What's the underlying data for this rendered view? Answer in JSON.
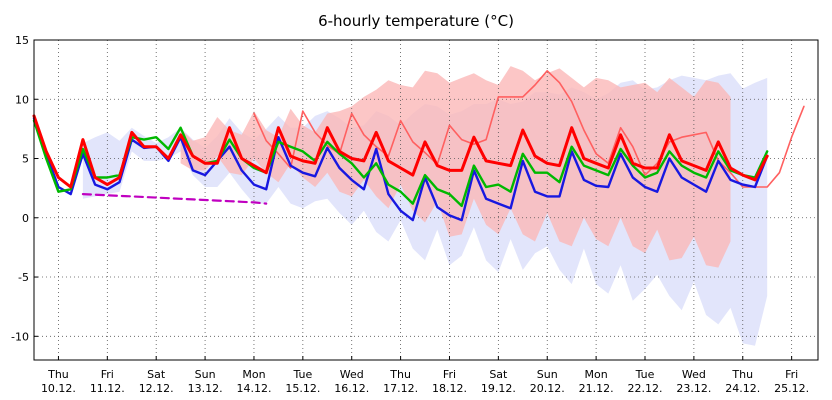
{
  "chart_data": {
    "type": "line",
    "title": "6-hourly temperature (°C)",
    "ylim": [
      -12,
      15
    ],
    "yticks": [
      15,
      10,
      5,
      0,
      -5,
      -10
    ],
    "xlim": [
      0,
      62
    ],
    "grid": true,
    "x_labels": [
      {
        "idx": 2,
        "day": "Thu",
        "date": "10.12."
      },
      {
        "idx": 6,
        "day": "Fri",
        "date": "11.12."
      },
      {
        "idx": 10,
        "day": "Sat",
        "date": "12.12."
      },
      {
        "idx": 14,
        "day": "Sun",
        "date": "13.12."
      },
      {
        "idx": 18,
        "day": "Mon",
        "date": "14.12."
      },
      {
        "idx": 22,
        "day": "Tue",
        "date": "15.12."
      },
      {
        "idx": 26,
        "day": "Wed",
        "date": "16.12."
      },
      {
        "idx": 30,
        "day": "Thu",
        "date": "17.12."
      },
      {
        "idx": 34,
        "day": "Fri",
        "date": "18.12."
      },
      {
        "idx": 38,
        "day": "Sat",
        "date": "19.12."
      },
      {
        "idx": 42,
        "day": "Sun",
        "date": "20.12."
      },
      {
        "idx": 46,
        "day": "Mon",
        "date": "21.12."
      },
      {
        "idx": 50,
        "day": "Tue",
        "date": "22.12."
      },
      {
        "idx": 54,
        "day": "Wed",
        "date": "23.12."
      },
      {
        "idx": 58,
        "day": "Thu",
        "date": "24.12."
      },
      {
        "idx": 62,
        "day": "Fri",
        "date": "25.12."
      }
    ],
    "bands": [
      {
        "color": "#d8dcfa",
        "opacity": 0.75,
        "start": 4,
        "upper": [
          6.3,
          6.8,
          7.2,
          6.5,
          7.6,
          6.9,
          6.3,
          6.8,
          7.6,
          6.6,
          5.9,
          6.9,
          8.4,
          7.2,
          6.6,
          7.5,
          8.6,
          7.6,
          7.6,
          8.6,
          9.0,
          8.4,
          7.6,
          7.8,
          9.0,
          8.6,
          7.8,
          8.8,
          9.6,
          9.4,
          8.7,
          9.0,
          9.6,
          9.6,
          10.0,
          9.6,
          9.8,
          10.6,
          10.6,
          10.4,
          11.0,
          10.6,
          10.0,
          10.5,
          11.4,
          11.6,
          10.8,
          11.0,
          11.6,
          12.0,
          11.8,
          11.6,
          12.0,
          12.2,
          10.9,
          11.4,
          11.8
        ],
        "lower": [
          1.6,
          1.8,
          2.0,
          2.2,
          5.6,
          4.8,
          4.8,
          5.0,
          5.6,
          3.6,
          2.6,
          2.6,
          3.8,
          2.4,
          1.2,
          1.2,
          2.6,
          1.2,
          0.8,
          1.4,
          1.6,
          0.4,
          -0.6,
          0.6,
          -1.2,
          -2.0,
          -0.2,
          -2.6,
          -3.6,
          -1.0,
          -4.0,
          -3.2,
          -0.8,
          -3.6,
          -4.6,
          -1.8,
          -4.4,
          -3.0,
          -2.4,
          -4.4,
          -5.6,
          -2.6,
          -5.6,
          -6.4,
          -4.0,
          -7.0,
          -6.0,
          -4.8,
          -6.6,
          -7.8,
          -5.4,
          -8.2,
          -9.0,
          -7.6,
          -10.6,
          -10.8,
          -6.6
        ]
      },
      {
        "color": "#fbb8b8",
        "opacity": 0.8,
        "start": 12,
        "upper": [
          7.5,
          6.5,
          6.8,
          8.5,
          7.4,
          7.0,
          9.0,
          7.4,
          6.8,
          9.2,
          7.8,
          7.2,
          8.8,
          9.0,
          9.4,
          10.2,
          10.8,
          11.6,
          11.2,
          11.0,
          12.4,
          12.2,
          11.4,
          11.8,
          12.2,
          11.6,
          11.2,
          12.8,
          12.4,
          11.6,
          12.2,
          12.6,
          11.8,
          11.0,
          11.8,
          11.6,
          11.0,
          11.2,
          11.4,
          10.6,
          11.8,
          11.0,
          10.2,
          11.6,
          11.4,
          10.2
        ],
        "lower": [
          4.6,
          4.0,
          4.0,
          5.2,
          3.8,
          3.6,
          5.0,
          3.8,
          3.0,
          4.6,
          3.4,
          2.6,
          3.8,
          2.2,
          1.8,
          3.2,
          1.8,
          0.8,
          2.8,
          0.6,
          -0.4,
          1.4,
          -1.6,
          -1.4,
          1.6,
          -0.6,
          -1.4,
          0.8,
          -1.4,
          -2.0,
          0.4,
          -2.0,
          -2.4,
          0.0,
          -1.8,
          -2.4,
          0.0,
          -2.4,
          -3.0,
          -1.0,
          -3.6,
          -3.4,
          -1.6,
          -4.0,
          -4.2,
          -2.0
        ]
      }
    ],
    "series": [
      {
        "color": "#ff6060",
        "width": 1.6,
        "dash": "",
        "start": 18,
        "values": [
          8.8,
          6.5,
          5.4,
          4.2,
          9.0,
          7.2,
          6.1,
          5.4,
          8.8,
          7.0,
          6.0,
          5.2,
          8.2,
          6.4,
          5.5,
          4.5,
          7.8,
          6.6,
          6.2,
          6.6,
          10.2,
          10.2,
          10.2,
          11.2,
          12.4,
          11.4,
          9.8,
          7.4,
          5.4,
          4.6,
          7.6,
          6.0,
          3.6,
          4.6,
          6.4,
          6.8,
          7.0,
          7.2,
          4.8,
          3.8,
          2.6,
          2.6,
          2.6,
          3.8,
          6.8,
          9.4
        ]
      },
      {
        "color": "#1818e0",
        "width": 2.4,
        "dash": "",
        "start": 0,
        "values": [
          8.4,
          5.4,
          2.6,
          2.0,
          5.4,
          2.8,
          2.4,
          3.0,
          6.6,
          5.9,
          6.0,
          4.8,
          6.8,
          4.0,
          3.6,
          4.8,
          6.0,
          4.0,
          2.8,
          2.4,
          6.8,
          4.4,
          3.8,
          3.5,
          5.9,
          4.2,
          3.2,
          2.4,
          5.8,
          2.0,
          0.6,
          -0.2,
          3.4,
          0.9,
          0.2,
          -0.2,
          4.0,
          1.6,
          1.2,
          0.8,
          4.8,
          2.2,
          1.8,
          1.8,
          5.6,
          3.2,
          2.7,
          2.6,
          5.4,
          3.4,
          2.6,
          2.2,
          5.0,
          3.4,
          2.8,
          2.2,
          4.8,
          3.2,
          2.8,
          2.6,
          5.2
        ]
      },
      {
        "color": "#00b800",
        "width": 2.4,
        "dash": "",
        "start": 0,
        "values": [
          8.2,
          5.0,
          2.2,
          2.4,
          5.8,
          3.4,
          3.4,
          3.6,
          6.8,
          6.6,
          6.8,
          5.8,
          7.6,
          5.2,
          4.6,
          4.8,
          6.6,
          5.0,
          4.2,
          3.8,
          6.4,
          6.0,
          5.6,
          4.8,
          6.4,
          5.4,
          4.6,
          3.4,
          4.6,
          2.8,
          2.2,
          1.2,
          3.6,
          2.4,
          2.0,
          1.0,
          4.4,
          2.6,
          2.8,
          2.2,
          5.4,
          3.8,
          3.8,
          3.0,
          6.0,
          4.4,
          4.0,
          3.6,
          5.8,
          4.4,
          3.4,
          3.8,
          5.6,
          4.4,
          3.8,
          3.4,
          5.6,
          4.0,
          3.6,
          3.4,
          5.6
        ]
      },
      {
        "color": "#ff0000",
        "width": 3.0,
        "dash": "",
        "start": 0,
        "values": [
          8.6,
          5.6,
          3.4,
          2.6,
          6.6,
          3.4,
          2.8,
          3.4,
          7.2,
          6.0,
          6.0,
          5.0,
          7.0,
          5.2,
          4.6,
          4.6,
          7.6,
          5.0,
          4.4,
          3.8,
          7.6,
          5.2,
          4.8,
          4.6,
          7.6,
          5.6,
          5.0,
          4.8,
          7.2,
          4.8,
          4.2,
          3.6,
          6.4,
          4.4,
          4.0,
          4.0,
          6.8,
          4.8,
          4.6,
          4.4,
          7.4,
          5.2,
          4.6,
          4.4,
          7.6,
          5.0,
          4.6,
          4.2,
          7.0,
          4.6,
          4.2,
          4.2,
          7.0,
          4.8,
          4.4,
          4.0,
          6.4,
          4.2,
          3.6,
          3.2,
          5.2
        ]
      },
      {
        "color": "#c000c0",
        "width": 2.2,
        "dash": "8,5",
        "start": 4,
        "values": [
          2.0,
          1.95,
          1.9,
          1.85,
          1.8,
          1.75,
          1.7,
          1.65,
          1.6,
          1.55,
          1.5,
          1.45,
          1.4,
          1.35,
          1.3,
          1.2
        ]
      }
    ]
  }
}
